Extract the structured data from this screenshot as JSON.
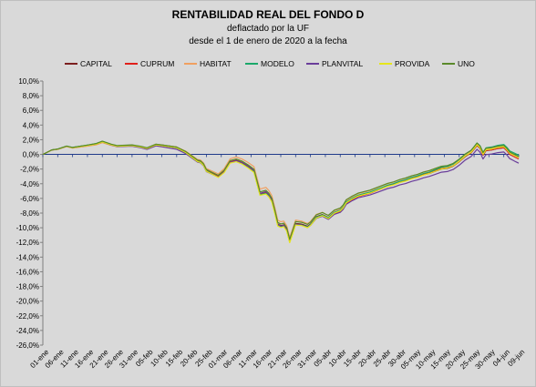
{
  "chart_data": {
    "type": "line",
    "title": "RENTABILIDAD REAL DEL FONDO D",
    "subtitle": [
      "deflactado por la UF",
      "desde el 1 de enero de 2020 a la fecha"
    ],
    "xlabel": "",
    "ylabel": "",
    "ylim": [
      -26,
      10
    ],
    "yticks": [
      10,
      8,
      6,
      4,
      2,
      0,
      -2,
      -4,
      -6,
      -8,
      -10,
      -12,
      -14,
      -16,
      -18,
      -20,
      -22,
      -24,
      -26
    ],
    "ytick_labels": [
      "10,0%",
      "8,0%",
      "6,0%",
      "4,0%",
      "2,0%",
      "0,0%",
      "-2,0%",
      "-4,0%",
      "-6,0%",
      "-8,0%",
      "-10,0%",
      "-12,0%",
      "-14,0%",
      "-16,0%",
      "-18,0%",
      "-20,0%",
      "-22,0%",
      "-24,0%",
      "-26,0%"
    ],
    "xtick_labels": [
      "01-ene",
      "06-ene",
      "11-ene",
      "16-ene",
      "21-ene",
      "26-ene",
      "31-ene",
      "05-feb",
      "10-feb",
      "15-feb",
      "20-feb",
      "25-feb",
      "01-mar",
      "06-mar",
      "11-mar",
      "16-mar",
      "21-mar",
      "26-mar",
      "31-mar",
      "05-abr",
      "10-abr",
      "15-abr",
      "20-abr",
      "25-abr",
      "30-abr",
      "05-may",
      "10-may",
      "15-may",
      "20-may",
      "25-may",
      "30-may",
      "04-jun",
      "09-jun"
    ],
    "legend_position": "top",
    "grid": false,
    "zero_line_color": "#1f3a8a",
    "x_days": [
      0,
      3,
      5,
      8,
      10,
      15,
      18,
      20,
      23,
      25,
      30,
      33,
      35,
      38,
      40,
      45,
      48,
      50,
      52,
      53,
      54,
      55,
      57,
      59,
      61,
      63,
      65,
      67,
      69,
      71,
      73,
      75,
      76,
      77,
      78,
      79,
      80,
      81,
      82,
      83,
      85,
      87,
      89,
      90,
      91,
      92,
      94,
      95,
      96,
      98,
      100,
      101,
      102,
      104,
      106,
      108,
      110,
      112,
      114,
      116,
      118,
      120,
      122,
      124,
      126,
      128,
      130,
      132,
      134,
      136,
      138,
      140,
      142,
      144,
      145,
      146,
      147,
      148,
      149,
      151,
      153,
      155,
      156,
      157,
      158,
      159,
      160
    ],
    "base_values": [
      0,
      0.6,
      0.7,
      1.1,
      0.9,
      1.2,
      1.4,
      1.7,
      1.3,
      1.1,
      1.2,
      1.0,
      0.8,
      1.3,
      1.2,
      0.9,
      0.3,
      -0.3,
      -0.9,
      -1.0,
      -1.4,
      -2.2,
      -2.6,
      -3.0,
      -2.3,
      -1.0,
      -0.8,
      -1.1,
      -1.6,
      -2.2,
      -5.3,
      -5.1,
      -5.5,
      -6.2,
      -7.8,
      -9.5,
      -9.7,
      -9.6,
      -10.2,
      -11.8,
      -9.4,
      -9.5,
      -9.8,
      -9.5,
      -9.0,
      -8.5,
      -8.2,
      -8.4,
      -8.6,
      -7.9,
      -7.6,
      -7.2,
      -6.5,
      -6.0,
      -5.6,
      -5.4,
      -5.2,
      -4.9,
      -4.6,
      -4.3,
      -4.1,
      -3.8,
      -3.6,
      -3.3,
      -3.1,
      -2.8,
      -2.6,
      -2.3,
      -2.0,
      -1.9,
      -1.6,
      -1.0,
      -0.3,
      0.2,
      0.7,
      1.2,
      0.8,
      -0.1,
      0.5,
      0.6,
      0.8,
      0.9,
      0.5,
      0.0,
      -0.2,
      -0.4,
      -0.6
    ],
    "series": [
      {
        "name": "CAPITAL",
        "color": "#7b1f1f",
        "offset": [
          0,
          0.0,
          0.0,
          0.0,
          0.0,
          0.0,
          0.0
        ]
      },
      {
        "name": "CUPRUM",
        "color": "#e0201a",
        "offset": [
          0,
          0.0,
          0.1,
          -0.1,
          -0.2,
          0.1,
          0.0
        ]
      },
      {
        "name": "HABITAT",
        "color": "#f0a060",
        "offset": [
          0,
          -0.1,
          0.1,
          0.6,
          0.2,
          0.4,
          0.1
        ]
      },
      {
        "name": "MODELO",
        "color": "#1aa86a",
        "offset": [
          0,
          0.1,
          0.0,
          -0.2,
          0.0,
          0.2,
          0.5
        ]
      },
      {
        "name": "PLANVITAL",
        "color": "#6a3d9a",
        "offset": [
          0,
          0.0,
          -0.2,
          0.0,
          -0.3,
          -0.4,
          -0.6
        ]
      },
      {
        "name": "PROVIDA",
        "color": "#e6e61a",
        "offset": [
          0,
          0.0,
          0.0,
          -0.3,
          -0.1,
          0.0,
          0.2
        ]
      },
      {
        "name": "UNO",
        "color": "#5a8a2a",
        "offset": [
          0,
          0.1,
          0.1,
          0.2,
          0.3,
          0.4,
          0.3
        ]
      }
    ],
    "offset_days": [
      0,
      20,
      45,
      75,
      100,
      130,
      160
    ]
  }
}
